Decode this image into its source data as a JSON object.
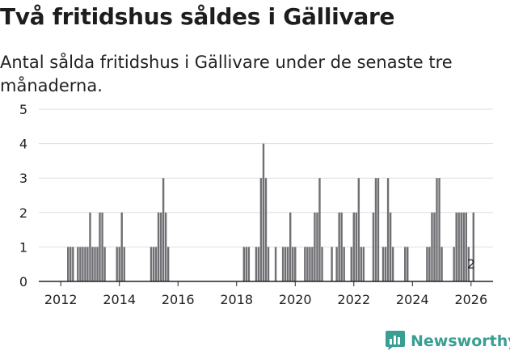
{
  "title": "Två fritidshus såldes i Gällivare",
  "subtitle": "Antal sålda fritidshus i Gällivare under de senaste tre månaderna.",
  "brand": {
    "name": "Newsworthy",
    "color": "#3a9e92",
    "icon": "bar-chart-logo-icon"
  },
  "colors": {
    "bar": "#706f73",
    "highlight": "#2a8f86",
    "grid": "#dddddd",
    "axis": "#222222"
  },
  "chart_data": {
    "type": "bar",
    "title": "Två fritidshus såldes i Gällivare",
    "xlabel": "",
    "ylabel": "",
    "ylim": [
      0,
      5
    ],
    "yticks": [
      0,
      1,
      2,
      3,
      4,
      5
    ],
    "xlim": [
      2011.25,
      2026.75
    ],
    "xticks": [
      2012,
      2014,
      2016,
      2018,
      2020,
      2022,
      2024,
      2026
    ],
    "x": [
      2011.5,
      2011.583,
      2011.667,
      2011.75,
      2011.833,
      2011.917,
      2012,
      2012.083,
      2012.167,
      2012.25,
      2012.333,
      2012.417,
      2012.5,
      2012.583,
      2012.667,
      2012.75,
      2012.833,
      2012.917,
      2013,
      2013.083,
      2013.167,
      2013.25,
      2013.333,
      2013.417,
      2013.5,
      2013.583,
      2013.667,
      2013.75,
      2013.833,
      2013.917,
      2014,
      2014.083,
      2014.167,
      2014.25,
      2014.333,
      2014.417,
      2014.5,
      2014.583,
      2014.667,
      2014.75,
      2014.833,
      2014.917,
      2015,
      2015.083,
      2015.167,
      2015.25,
      2015.333,
      2015.417,
      2015.5,
      2015.583,
      2015.667,
      2015.75,
      2015.833,
      2015.917,
      2016,
      2016.083,
      2016.167,
      2016.25,
      2016.333,
      2016.417,
      2016.5,
      2016.583,
      2016.667,
      2016.75,
      2016.833,
      2016.917,
      2017,
      2017.083,
      2017.167,
      2017.25,
      2017.333,
      2017.417,
      2017.5,
      2017.583,
      2017.667,
      2017.75,
      2017.833,
      2017.917,
      2018,
      2018.083,
      2018.167,
      2018.25,
      2018.333,
      2018.417,
      2018.5,
      2018.583,
      2018.667,
      2018.75,
      2018.833,
      2018.917,
      2019,
      2019.083,
      2019.167,
      2019.25,
      2019.333,
      2019.417,
      2019.5,
      2019.583,
      2019.667,
      2019.75,
      2019.833,
      2019.917,
      2020,
      2020.083,
      2020.167,
      2020.25,
      2020.333,
      2020.417,
      2020.5,
      2020.583,
      2020.667,
      2020.75,
      2020.833,
      2020.917,
      2021,
      2021.083,
      2021.167,
      2021.25,
      2021.333,
      2021.417,
      2021.5,
      2021.583,
      2021.667,
      2021.75,
      2021.833,
      2021.917,
      2022,
      2022.083,
      2022.167,
      2022.25,
      2022.333,
      2022.417,
      2022.5,
      2022.583,
      2022.667,
      2022.75,
      2022.833,
      2022.917,
      2023,
      2023.083,
      2023.167,
      2023.25,
      2023.333,
      2023.417,
      2023.5,
      2023.583,
      2023.667,
      2023.75,
      2023.833,
      2023.917,
      2024,
      2024.083,
      2024.167,
      2024.25,
      2024.333,
      2024.417,
      2024.5,
      2024.583,
      2024.667,
      2024.75,
      2024.833,
      2024.917,
      2025,
      2025.083,
      2025.167,
      2025.25,
      2025.333,
      2025.417,
      2025.5,
      2025.583,
      2025.667,
      2025.75,
      2025.833,
      2025.917,
      2026,
      2026.083
    ],
    "values": [
      0,
      0,
      0,
      0,
      0,
      0,
      0,
      0,
      0,
      1,
      1,
      1,
      0,
      1,
      1,
      1,
      1,
      1,
      2,
      1,
      1,
      1,
      2,
      2,
      1,
      0,
      0,
      0,
      0,
      1,
      1,
      2,
      1,
      0,
      0,
      0,
      0,
      0,
      0,
      0,
      0,
      0,
      0,
      1,
      1,
      1,
      2,
      2,
      3,
      2,
      1,
      0,
      0,
      0,
      0,
      0,
      0,
      0,
      0,
      0,
      0,
      0,
      0,
      0,
      0,
      0,
      0,
      0,
      0,
      0,
      0,
      0,
      0,
      0,
      0,
      0,
      0,
      0,
      0,
      0,
      0,
      1,
      1,
      1,
      0,
      0,
      1,
      1,
      3,
      4,
      3,
      1,
      0,
      0,
      1,
      0,
      0,
      1,
      1,
      1,
      2,
      1,
      1,
      0,
      0,
      0,
      1,
      1,
      1,
      1,
      2,
      2,
      3,
      1,
      0,
      0,
      0,
      1,
      0,
      1,
      2,
      2,
      1,
      0,
      0,
      1,
      2,
      2,
      3,
      1,
      1,
      0,
      0,
      0,
      2,
      3,
      3,
      0,
      1,
      1,
      3,
      2,
      1,
      0,
      0,
      0,
      0,
      1,
      1,
      0,
      0,
      0,
      0,
      0,
      0,
      0,
      1,
      1,
      2,
      2,
      3,
      3,
      1,
      0,
      0,
      0,
      0,
      1,
      2,
      2,
      2,
      2,
      2,
      1,
      0,
      2
    ],
    "highlight_index": 174,
    "annotation": "2"
  }
}
